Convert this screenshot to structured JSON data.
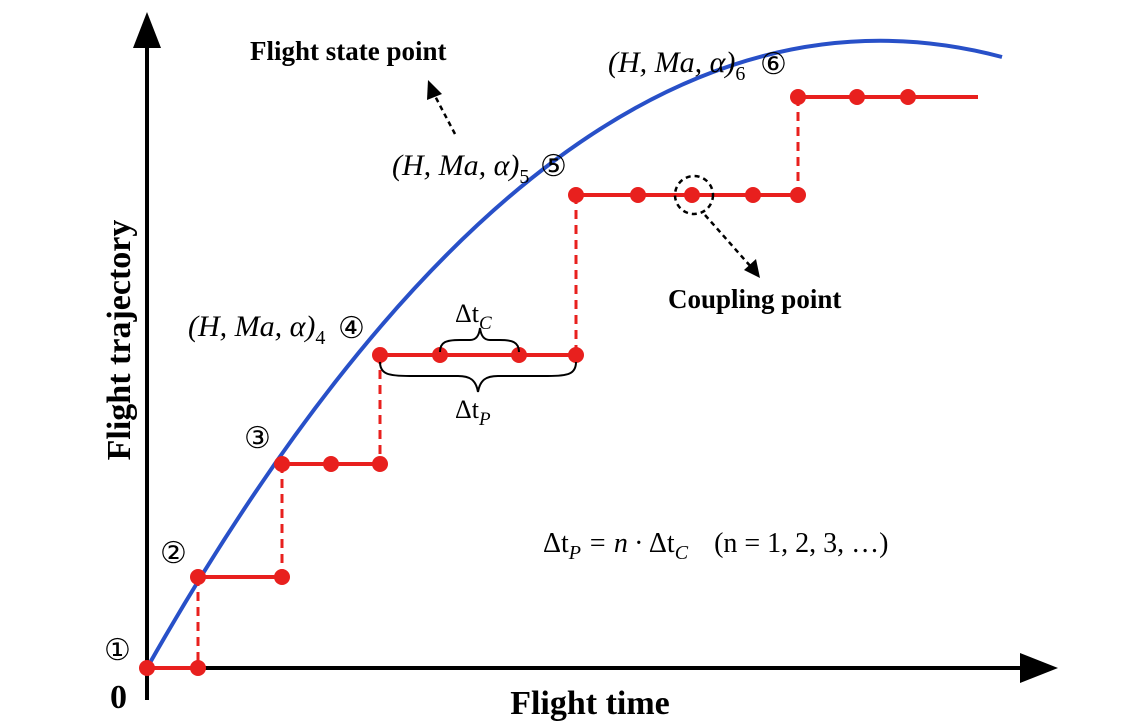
{
  "axes": {
    "y_label": "Flight trajectory",
    "x_label": "Flight time",
    "origin_label": "0"
  },
  "annotations": {
    "flight_state_point": "Flight state point",
    "coupling_point": "Coupling point",
    "delta_tc": {
      "base": "Δt",
      "sub": "C"
    },
    "delta_tp": {
      "base": "Δt",
      "sub": "P"
    },
    "formula": {
      "lhs_base": "Δt",
      "lhs_sub": "P",
      "mid": " = n · ",
      "rhs_base": "Δt",
      "rhs_sub": "C",
      "cond": "(n = 1, 2, 3, …)"
    }
  },
  "states": {
    "s4": {
      "text": "(H, Ma, α)",
      "sub": "4"
    },
    "s5": {
      "text": "(H, Ma, α)",
      "sub": "5"
    },
    "s6": {
      "text": "(H, Ma, α)",
      "sub": "6"
    }
  },
  "markers": [
    "①",
    "②",
    "③",
    "④",
    "⑤",
    "⑥"
  ],
  "colors": {
    "curve": "#2850c8",
    "steps": "#e8201e",
    "axis": "#000000"
  }
}
